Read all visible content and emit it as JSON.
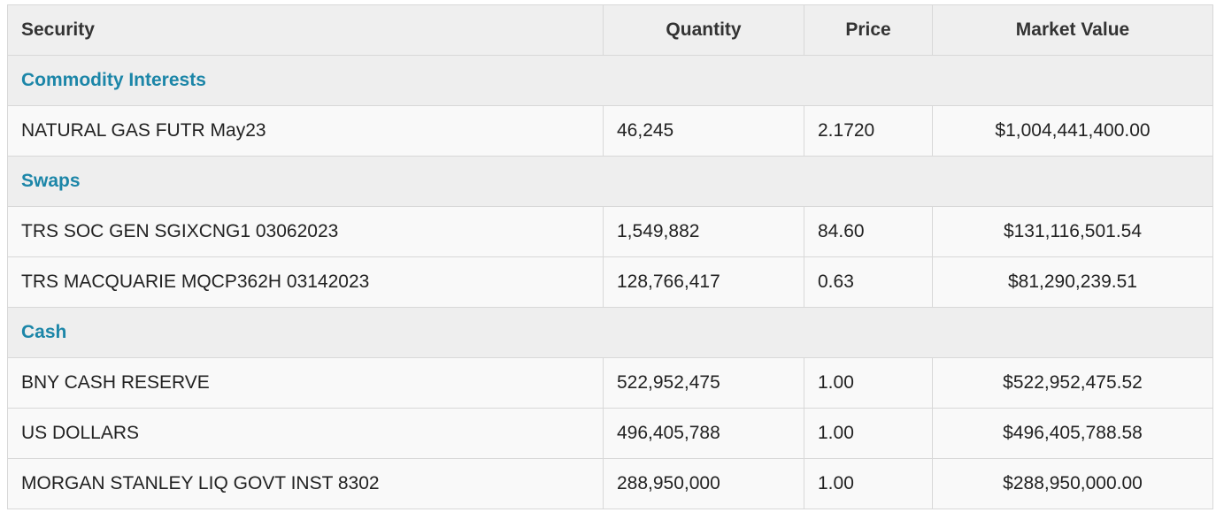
{
  "table": {
    "columns": [
      "Security",
      "Quantity",
      "Price",
      "Market Value"
    ],
    "sections": [
      {
        "name": "Commodity Interests",
        "rows": [
          {
            "security": "NATURAL GAS FUTR May23",
            "quantity": "46,245",
            "price": "2.1720",
            "market_value": "$1,004,441,400.00"
          }
        ]
      },
      {
        "name": "Swaps",
        "rows": [
          {
            "security": "TRS SOC GEN SGIXCNG1 03062023",
            "quantity": "1,549,882",
            "price": "84.60",
            "market_value": "$131,116,501.54"
          },
          {
            "security": "TRS MACQUARIE MQCP362H 03142023",
            "quantity": "128,766,417",
            "price": "0.63",
            "market_value": "$81,290,239.51"
          }
        ]
      },
      {
        "name": "Cash",
        "rows": [
          {
            "security": "BNY CASH RESERVE",
            "quantity": "522,952,475",
            "price": "1.00",
            "market_value": "$522,952,475.52"
          },
          {
            "security": "US DOLLARS",
            "quantity": "496,405,788",
            "price": "1.00",
            "market_value": "$496,405,788.58"
          },
          {
            "security": "MORGAN STANLEY LIQ GOVT INST 8302",
            "quantity": "288,950,000",
            "price": "1.00",
            "market_value": "$288,950,000.00"
          }
        ]
      }
    ]
  },
  "colors": {
    "section_text": "#1c86a8",
    "header_bg": "#efefef",
    "row_bg": "#f9f9f9",
    "border": "#d8d8d8"
  }
}
